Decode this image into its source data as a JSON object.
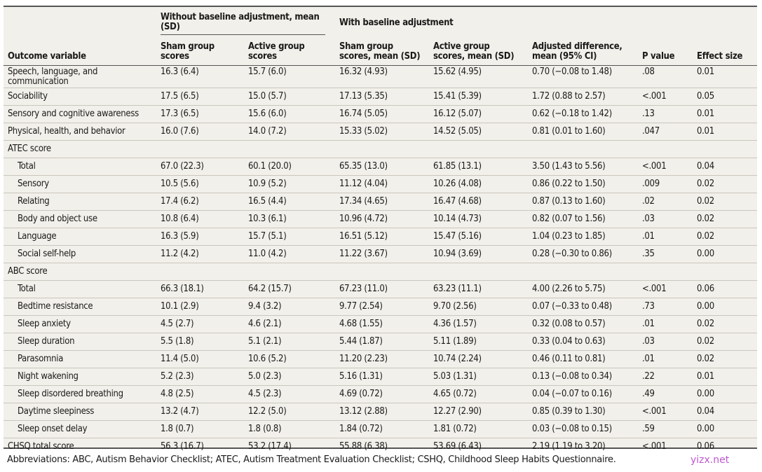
{
  "table": {
    "group_headers": [
      "Without baseline adjustment, mean (SD)",
      "With baseline adjustment"
    ],
    "columns": [
      "Outcome variable",
      "Sham group scores",
      "Active group scores",
      "Sham group scores, mean (SD)",
      "Active group scores, mean (SD)",
      "Adjusted difference, mean (95% CI)",
      "P value",
      "Effect size"
    ],
    "rows": [
      {
        "label": "Speech, language, and communication",
        "indent": false,
        "values": [
          "16.3 (6.4)",
          "15.7 (6.0)",
          "16.32 (4.93)",
          "15.62 (4.95)",
          "0.70 (−0.08 to 1.48)",
          ".08",
          "0.01"
        ]
      },
      {
        "label": "Sociability",
        "indent": false,
        "values": [
          "17.5 (6.5)",
          "15.0 (5.7)",
          "17.13 (5.35)",
          "15.41 (5.39)",
          "1.72 (0.88 to 2.57)",
          "<.001",
          "0.05"
        ]
      },
      {
        "label": "Sensory and cognitive awareness",
        "indent": false,
        "values": [
          "17.3 (6.5)",
          "15.6 (6.0)",
          "16.74 (5.05)",
          "16.12 (5.07)",
          "0.62 (−0.18 to 1.42)",
          ".13",
          "0.01"
        ]
      },
      {
        "label": "Physical, health, and behavior",
        "indent": false,
        "values": [
          "16.0 (7.6)",
          "14.0 (7.2)",
          "15.33 (5.02)",
          "14.52 (5.05)",
          "0.81 (0.01 to 1.60)",
          ".047",
          "0.01"
        ]
      },
      {
        "label": "ATEC score",
        "indent": false,
        "values": [
          "",
          "",
          "",
          "",
          "",
          "",
          ""
        ]
      },
      {
        "label": "Total",
        "indent": true,
        "values": [
          "67.0 (22.3)",
          "60.1 (20.0)",
          "65.35 (13.0)",
          "61.85 (13.1)",
          "3.50 (1.43 to 5.56)",
          "<.001",
          "0.04"
        ]
      },
      {
        "label": "Sensory",
        "indent": true,
        "values": [
          "10.5 (5.6)",
          "10.9 (5.2)",
          "11.12 (4.04)",
          "10.26 (4.08)",
          "0.86 (0.22 to 1.50)",
          ".009",
          "0.02"
        ]
      },
      {
        "label": "Relating",
        "indent": true,
        "values": [
          "17.4 (6.2)",
          "16.5 (4.4)",
          "17.34 (4.65)",
          "16.47 (4.68)",
          "0.87 (0.13 to 1.60)",
          ".02",
          "0.02"
        ]
      },
      {
        "label": "Body and object use",
        "indent": true,
        "values": [
          "10.8 (6.4)",
          "10.3 (6.1)",
          "10.96 (4.72)",
          "10.14 (4.73)",
          "0.82 (0.07 to 1.56)",
          ".03",
          "0.02"
        ]
      },
      {
        "label": "Language",
        "indent": true,
        "values": [
          "16.3 (5.9)",
          "15.7 (5.1)",
          "16.51 (5.12)",
          "15.47 (5.16)",
          "1.04 (0.23 to 1.85)",
          ".01",
          "0.02"
        ]
      },
      {
        "label": "Social self-help",
        "indent": true,
        "values": [
          "11.2 (4.2)",
          "11.0 (4.2)",
          "11.22 (3.67)",
          "10.94 (3.69)",
          "0.28 (−0.30 to 0.86)",
          ".35",
          "0.00"
        ]
      },
      {
        "label": "ABC score",
        "indent": false,
        "values": [
          "",
          "",
          "",
          "",
          "",
          "",
          ""
        ]
      },
      {
        "label": "Total",
        "indent": true,
        "values": [
          "66.3 (18.1)",
          "64.2 (15.7)",
          "67.23 (11.0)",
          "63.23 (11.1)",
          "4.00 (2.26 to 5.75)",
          "<.001",
          "0.06"
        ]
      },
      {
        "label": "Bedtime resistance",
        "indent": true,
        "values": [
          "10.1 (2.9)",
          "9.4 (3.2)",
          "9.77 (2.54)",
          "9.70 (2.56)",
          "0.07 (−0.33 to 0.48)",
          ".73",
          "0.00"
        ]
      },
      {
        "label": "Sleep anxiety",
        "indent": true,
        "values": [
          "4.5 (2.7)",
          "4.6 (2.1)",
          "4.68 (1.55)",
          "4.36 (1.57)",
          "0.32 (0.08 to 0.57)",
          ".01",
          "0.02"
        ]
      },
      {
        "label": "Sleep duration",
        "indent": true,
        "values": [
          "5.5 (1.8)",
          "5.1 (2.1)",
          "5.44 (1.87)",
          "5.11 (1.89)",
          "0.33 (0.04 to 0.63)",
          ".03",
          "0.02"
        ]
      },
      {
        "label": "Parasomnia",
        "indent": true,
        "values": [
          "11.4 (5.0)",
          "10.6 (5.2)",
          "11.20 (2.23)",
          "10.74 (2.24)",
          "0.46 (0.11 to 0.81)",
          ".01",
          "0.02"
        ]
      },
      {
        "label": "Night wakening",
        "indent": true,
        "values": [
          "5.2 (2.3)",
          "5.0 (2.3)",
          "5.16 (1.31)",
          "5.03 (1.31)",
          "0.13 (−0.08 to 0.34)",
          ".22",
          "0.01"
        ]
      },
      {
        "label": "Sleep disordered breathing",
        "indent": true,
        "values": [
          "4.8 (2.5)",
          "4.5 (2.3)",
          "4.69 (0.72)",
          "4.65 (0.72)",
          "0.04 (−0.07 to 0.16)",
          ".49",
          "0.00"
        ]
      },
      {
        "label": "Daytime sleepiness",
        "indent": true,
        "values": [
          "13.2 (4.7)",
          "12.2 (5.0)",
          "13.12 (2.88)",
          "12.27 (2.90)",
          "0.85 (0.39 to 1.30)",
          "<.001",
          "0.04"
        ]
      },
      {
        "label": "Sleep onset delay",
        "indent": true,
        "values": [
          "1.8 (0.7)",
          "1.8 (0.8)",
          "1.84 (0.72)",
          "1.81 (0.72)",
          "0.03 (−0.08 to 0.15)",
          ".59",
          "0.00"
        ]
      },
      {
        "label": "CHSQ total score",
        "indent": false,
        "values": [
          "56.3 (16.7)",
          "53.2 (17.4)",
          "55.88 (6.38)",
          "53.69 (6.43)",
          "2.19 (1.19 to 3.20)",
          "<.001",
          "0.06"
        ]
      }
    ]
  },
  "footnote": "Abbreviations: ABC, Autism Behavior Checklist; ATEC, Autism Treatment Evaluation Checklist; CSHQ, Childhood Sleep Habits Questionnaire.",
  "watermark": "yizx.net"
}
